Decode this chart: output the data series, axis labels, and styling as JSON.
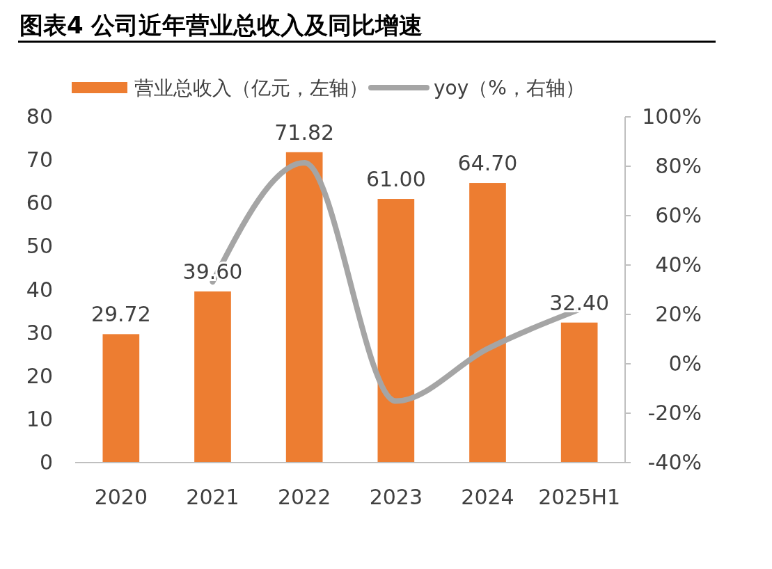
{
  "chart_data": {
    "type": "bar",
    "title": "图表4      公司近年营业总收入及同比增速",
    "categories": [
      "2020",
      "2021",
      "2022",
      "2023",
      "2024",
      "2025H1"
    ],
    "series": [
      {
        "name": "营业总收入（亿元，左轴）",
        "color": "#ed7d31",
        "values": [
          29.72,
          39.6,
          71.82,
          61.0,
          64.7,
          32.4
        ],
        "value_labels": [
          "29.72",
          "39.60",
          "71.82",
          "61.00",
          "64.70",
          "32.40"
        ]
      },
      {
        "name": "yoy（%，右轴）",
        "type": "line",
        "axis": "y2",
        "color": "#a5a5a5",
        "values": [
          null,
          33.2,
          81.4,
          -15.1,
          6.1,
          22
        ]
      }
    ],
    "ylim": [
      0,
      80
    ],
    "yticks": [
      0,
      10,
      20,
      30,
      40,
      50,
      60,
      70,
      80
    ],
    "y2lim": [
      -40,
      100
    ],
    "y2ticks": [
      {
        "value": -40,
        "label": "-40%"
      },
      {
        "value": -20,
        "label": "-20%"
      },
      {
        "value": 0,
        "label": "0%"
      },
      {
        "value": 20,
        "label": "20%"
      },
      {
        "value": 40,
        "label": "40%"
      },
      {
        "value": 60,
        "label": "60%"
      },
      {
        "value": 80,
        "label": "80%"
      },
      {
        "value": 100,
        "label": "100%"
      }
    ],
    "legend": "top",
    "grid": false,
    "marker": "none",
    "line_style": "solid"
  }
}
